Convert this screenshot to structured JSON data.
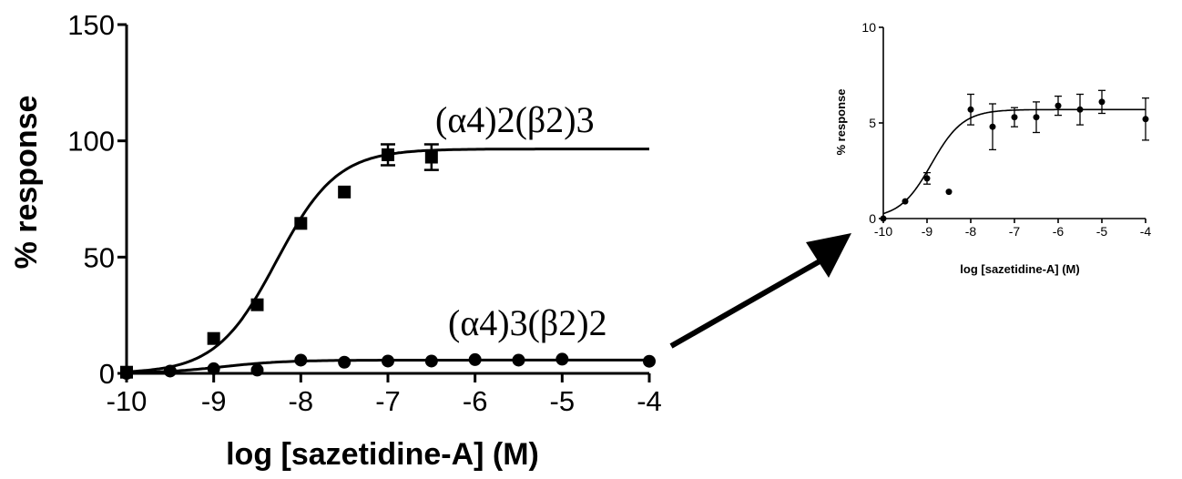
{
  "chart_data": [
    {
      "type": "scatter",
      "xlabel": "log [sazetidine-A] (M)",
      "ylabel": "% response",
      "xlim": [
        -10,
        -4
      ],
      "ylim": [
        0,
        150
      ],
      "xticks": [
        -10,
        -9,
        -8,
        -7,
        -6,
        -5,
        -4
      ],
      "yticks": [
        0,
        50,
        100,
        150
      ],
      "series": [
        {
          "name": "(α4)2(β2)3",
          "marker": "square",
          "fit": {
            "bottom": 0,
            "top": 96.5,
            "logEC50": -8.28,
            "hill": 1.25
          },
          "points": [
            {
              "x": -10,
              "y": 0.5,
              "err": 0
            },
            {
              "x": -9,
              "y": 15,
              "err": 0
            },
            {
              "x": -8.5,
              "y": 29.5,
              "err": 0
            },
            {
              "x": -8,
              "y": 64.5,
              "err": 0
            },
            {
              "x": -7.5,
              "y": 78,
              "err": 0
            },
            {
              "x": -7,
              "y": 94,
              "err": 4.5
            },
            {
              "x": -6.5,
              "y": 93,
              "err": 5.5
            }
          ]
        },
        {
          "name": "(α4)3(β2)2",
          "marker": "circle",
          "fit": {
            "bottom": 0,
            "top": 5.7,
            "logEC50": -8.9,
            "hill": 1.2
          },
          "points": [
            {
              "x": -10,
              "y": 0,
              "err": 0
            },
            {
              "x": -9.5,
              "y": 1,
              "err": 0
            },
            {
              "x": -9,
              "y": 2,
              "err": 0
            },
            {
              "x": -8.5,
              "y": 1.4,
              "err": 0
            },
            {
              "x": -8,
              "y": 5.7,
              "err": 0
            },
            {
              "x": -7.5,
              "y": 4.8,
              "err": 0
            },
            {
              "x": -7,
              "y": 5.3,
              "err": 0
            },
            {
              "x": -6.5,
              "y": 5.3,
              "err": 0
            },
            {
              "x": -6,
              "y": 5.9,
              "err": 0
            },
            {
              "x": -5.5,
              "y": 5.7,
              "err": 0
            },
            {
              "x": -5,
              "y": 6.1,
              "err": 0
            },
            {
              "x": -4,
              "y": 5.2,
              "err": 0
            }
          ]
        }
      ]
    },
    {
      "type": "scatter",
      "xlabel": "log [sazetidine-A] (M)",
      "ylabel": "% response",
      "xlim": [
        -10,
        -4
      ],
      "ylim": [
        0,
        10
      ],
      "xticks": [
        -10,
        -9,
        -8,
        -7,
        -6,
        -5,
        -4
      ],
      "yticks": [
        0,
        5,
        10
      ],
      "series": [
        {
          "name": "",
          "marker": "circle",
          "fit": {
            "bottom": 0,
            "top": 5.7,
            "logEC50": -8.9,
            "hill": 1.2
          },
          "points": [
            {
              "x": -10,
              "y": 0,
              "err": 0
            },
            {
              "x": -9.5,
              "y": 0.9,
              "err": 0
            },
            {
              "x": -9,
              "y": 2.1,
              "err": 0.3
            },
            {
              "x": -8.5,
              "y": 1.4,
              "err": 0
            },
            {
              "x": -8,
              "y": 5.7,
              "err": 0.8
            },
            {
              "x": -7.5,
              "y": 4.8,
              "err": 1.2
            },
            {
              "x": -7,
              "y": 5.3,
              "err": 0.5
            },
            {
              "x": -6.5,
              "y": 5.3,
              "err": 0.8
            },
            {
              "x": -6,
              "y": 5.9,
              "err": 0.5
            },
            {
              "x": -5.5,
              "y": 5.7,
              "err": 0.8
            },
            {
              "x": -5,
              "y": 6.1,
              "err": 0.6
            },
            {
              "x": -4,
              "y": 5.2,
              "err": 1.1
            }
          ]
        }
      ]
    }
  ]
}
